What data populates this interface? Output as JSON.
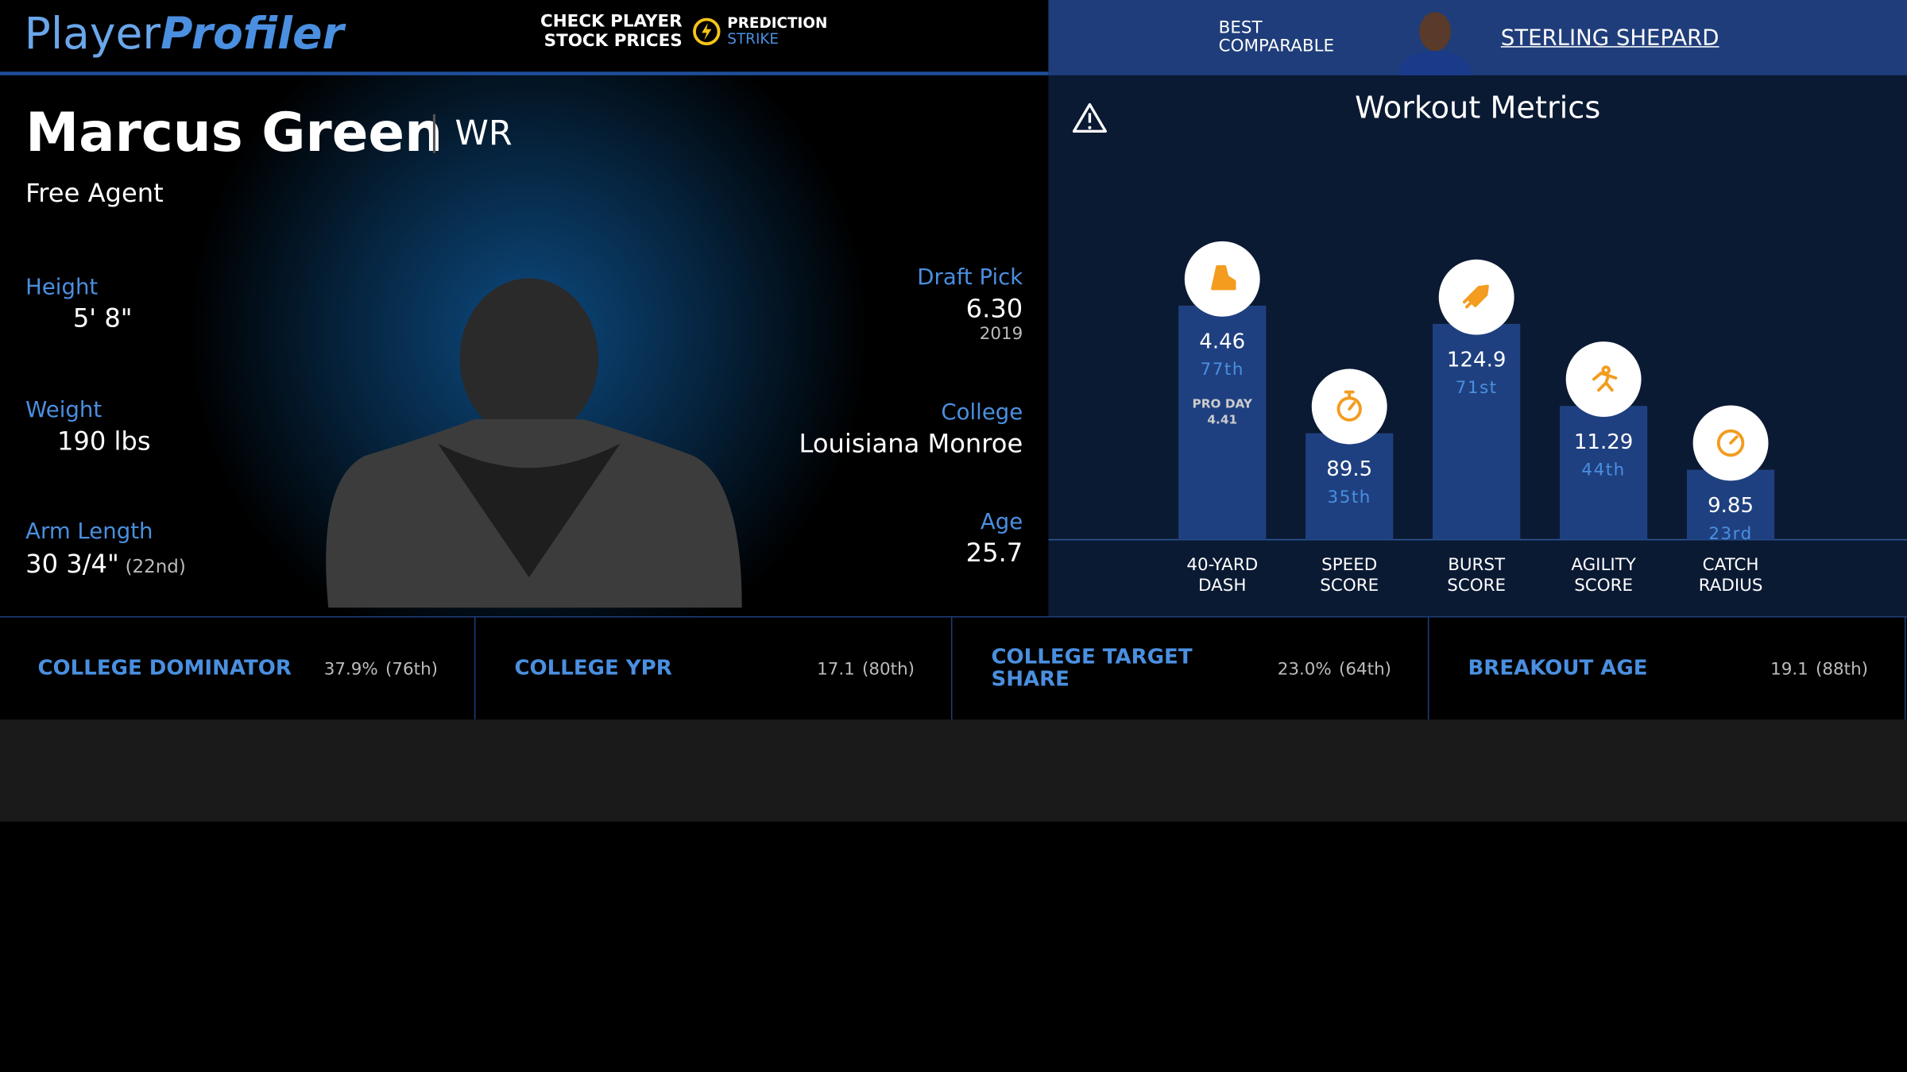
{
  "header": {
    "logo_left": "Player",
    "logo_right": "Profiler",
    "promo_line1": "CHECK PLAYER",
    "promo_line2": "STOCK PRICES",
    "brand_line1": "PREDICTION",
    "brand_line2": "STRIKE",
    "comparable_line1": "BEST",
    "comparable_line2": "COMPARABLE",
    "comparable_name": "STERLING SHEPARD"
  },
  "player": {
    "name": "Marcus Green",
    "position": "WR",
    "team": "Free Agent",
    "height_label": "Height",
    "height": "5' 8\"",
    "weight_label": "Weight",
    "weight": "190 lbs",
    "arm_label": "Arm Length",
    "arm": "30 3/4\"",
    "arm_rank": "(22nd)",
    "draft_label": "Draft Pick",
    "draft": "6.30",
    "draft_year": "2019",
    "college_label": "College",
    "college": "Louisiana Monroe",
    "age_label": "Age",
    "age": "25.7"
  },
  "workout": {
    "title": "Workout Metrics",
    "metrics": [
      {
        "label_line1": "40-YARD",
        "label_line2": "DASH",
        "value": "4.46",
        "percentile": 77,
        "percentile_label": "77th",
        "note": "PRO DAY",
        "note_value": "4.41"
      },
      {
        "label_line1": "SPEED",
        "label_line2": "SCORE",
        "value": "89.5",
        "percentile": 35,
        "percentile_label": "35th"
      },
      {
        "label_line1": "BURST",
        "label_line2": "SCORE",
        "value": "124.9",
        "percentile": 71,
        "percentile_label": "71st"
      },
      {
        "label_line1": "AGILITY",
        "label_line2": "SCORE",
        "value": "11.29",
        "percentile": 44,
        "percentile_label": "44th"
      },
      {
        "label_line1": "CATCH",
        "label_line2": "RADIUS",
        "value": "9.85",
        "percentile": 23,
        "percentile_label": "23rd"
      }
    ]
  },
  "college_stats": [
    {
      "label": "COLLEGE DOMINATOR",
      "value": "37.9%",
      "rank": "(76th)"
    },
    {
      "label": "COLLEGE YPR",
      "value": "17.1",
      "rank": "(80th)"
    },
    {
      "label": "COLLEGE TARGET SHARE",
      "value": "23.0%",
      "rank": "(64th)"
    },
    {
      "label": "BREAKOUT AGE",
      "value": "19.1",
      "rank": "(88th)"
    }
  ]
}
